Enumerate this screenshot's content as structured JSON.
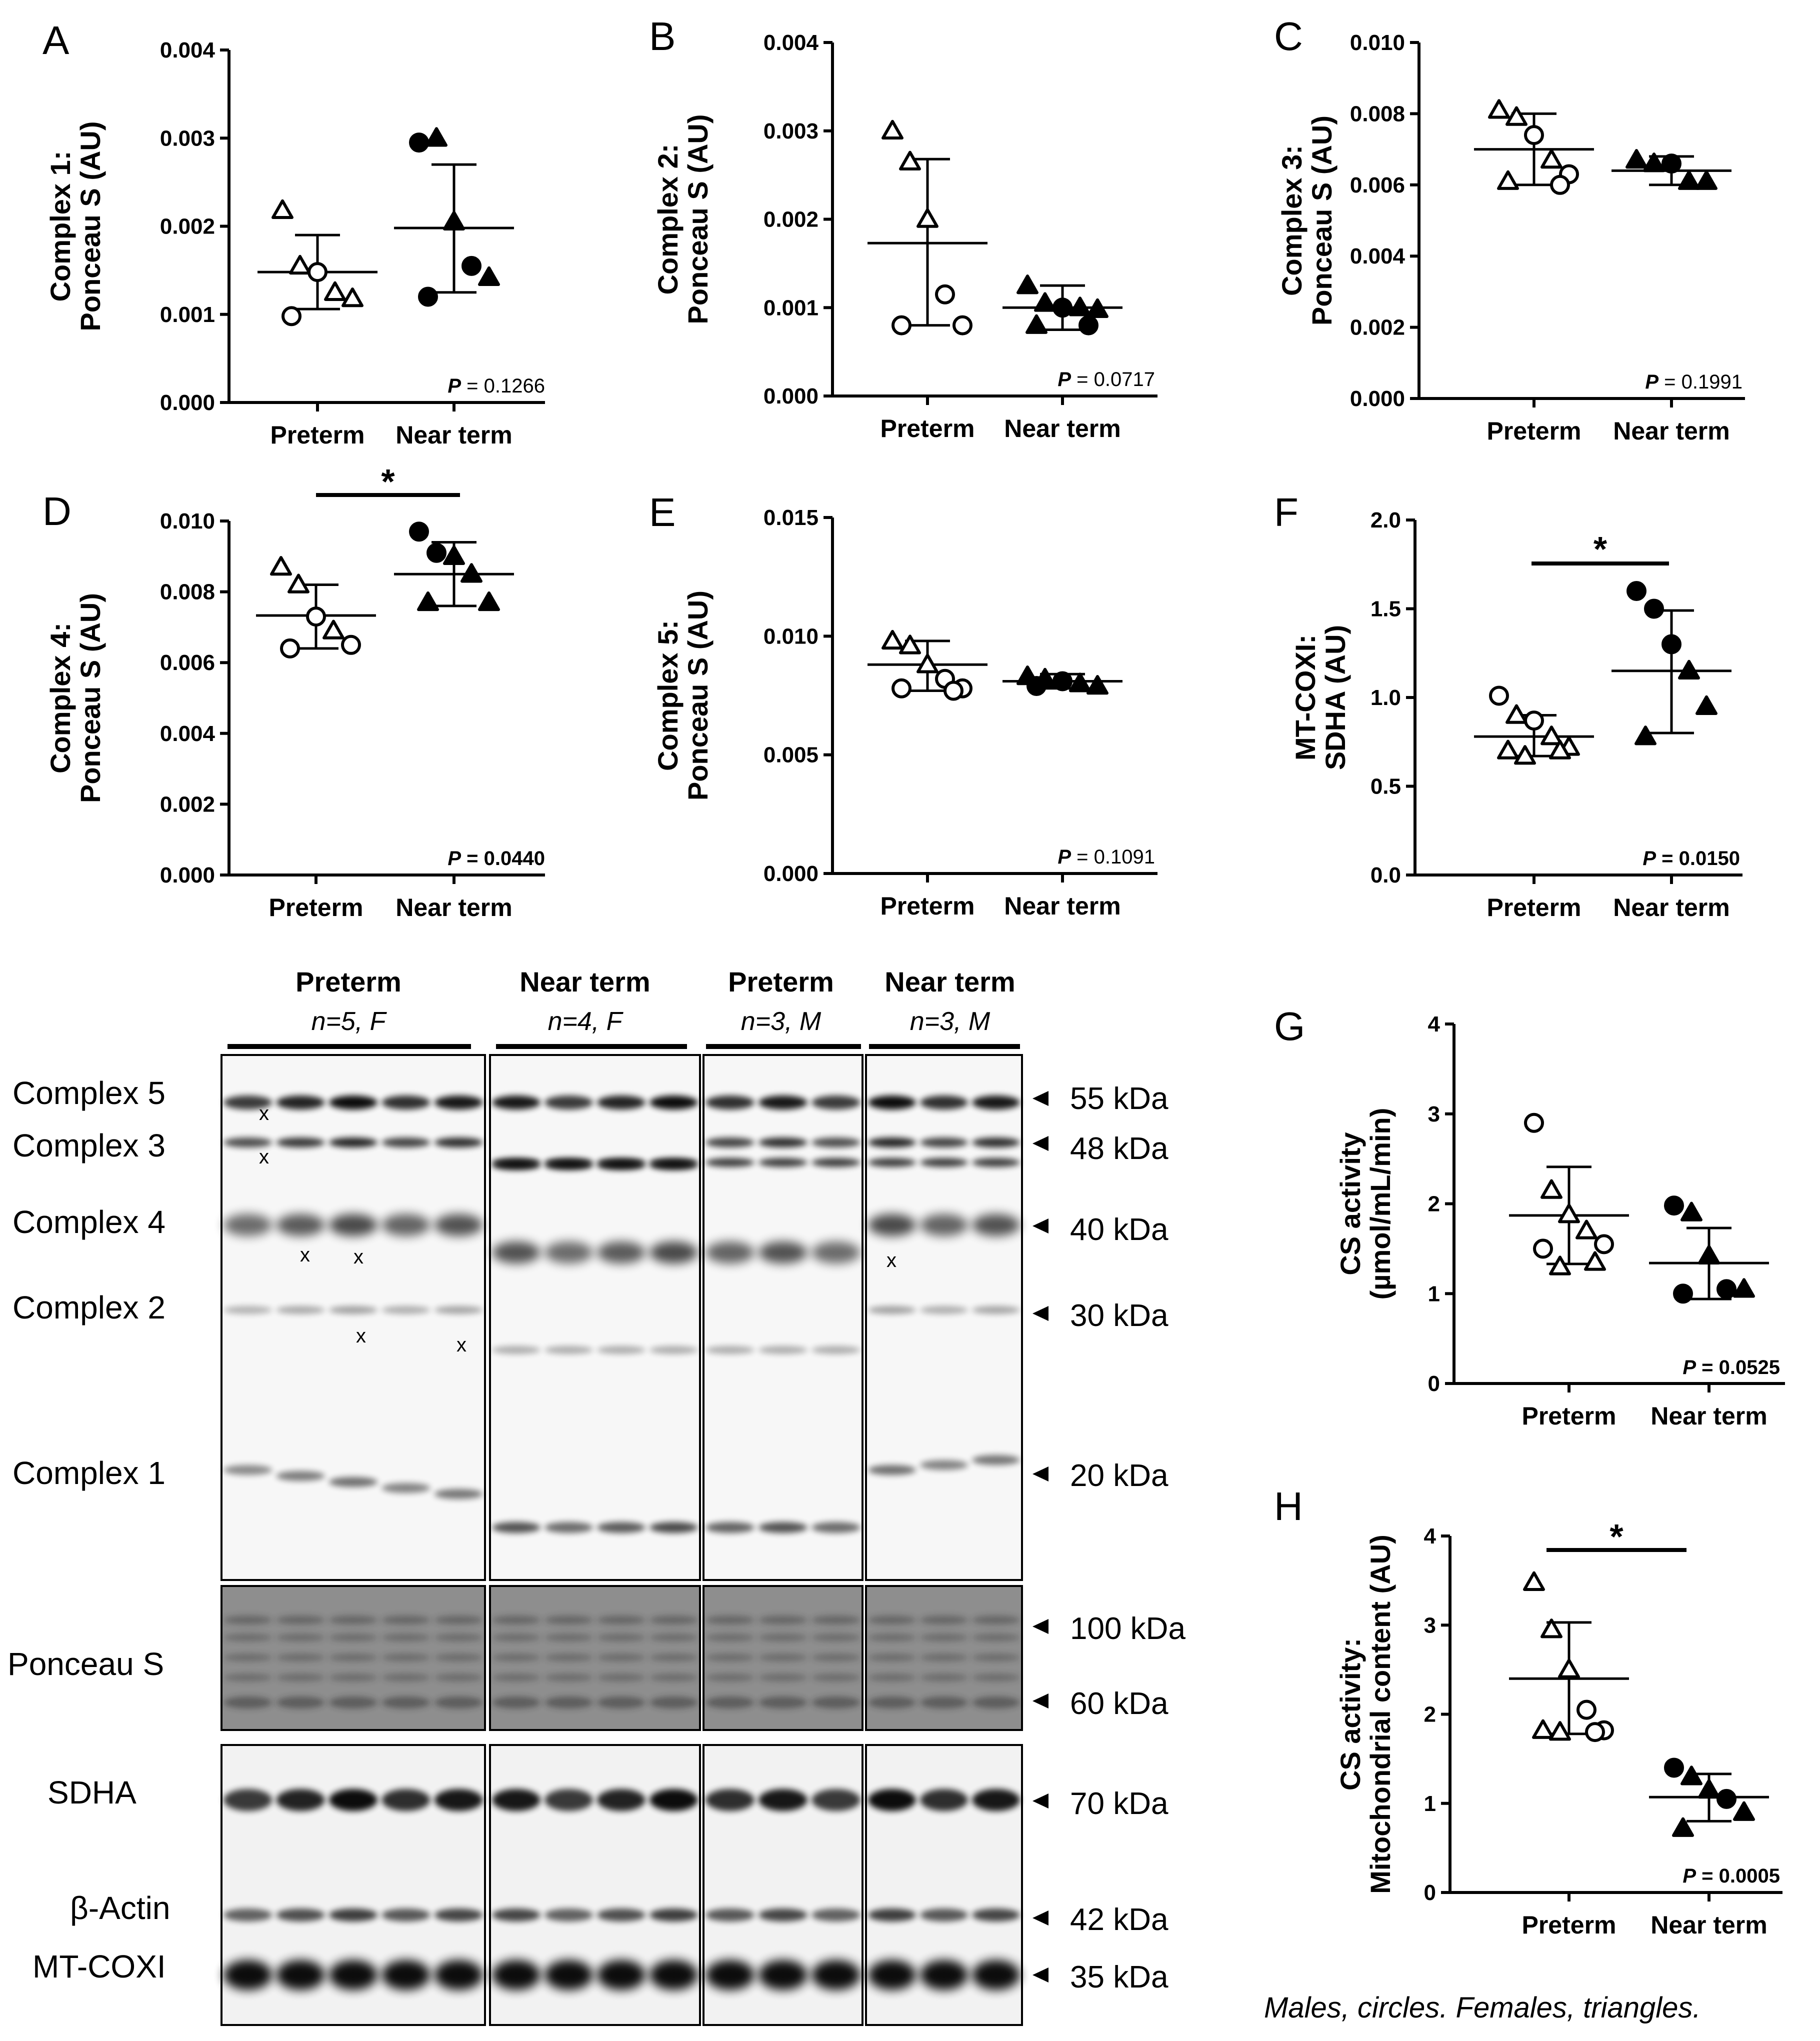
{
  "colors": {
    "ink": "#000000",
    "background": "#ffffff",
    "blot_bg": "#f4f4f4",
    "ponceau_bg": "#8c8c8c"
  },
  "marker_shapes": {
    "circle": "male",
    "triangle": "female"
  },
  "chart_data": [
    {
      "panel": "A",
      "type": "scatter",
      "ylabel_lines": [
        "Complex 1:",
        "Ponceau S (AU)"
      ],
      "ylim": [
        0,
        0.004
      ],
      "yticks": [
        "0.000",
        "0.001",
        "0.002",
        "0.003",
        "0.004"
      ],
      "categories": [
        "Preterm",
        "Near term"
      ],
      "p_label": "P",
      "p_text": " = 0.1266",
      "p_bold": false,
      "significant": false,
      "groups": [
        {
          "name": "Preterm",
          "mean": 0.00148,
          "sd_low": 0.00106,
          "sd_high": 0.0019,
          "points": [
            {
              "v": 0.00218,
              "shape": "triangle"
            },
            {
              "v": 0.00155,
              "shape": "triangle"
            },
            {
              "v": 0.00148,
              "shape": "circle"
            },
            {
              "v": 0.00125,
              "shape": "triangle"
            },
            {
              "v": 0.00118,
              "shape": "triangle"
            },
            {
              "v": 0.00098,
              "shape": "circle"
            }
          ]
        },
        {
          "name": "Near term",
          "mean": 0.00198,
          "sd_low": 0.00125,
          "sd_high": 0.0027,
          "points": [
            {
              "v": 0.00295,
              "shape": "circle"
            },
            {
              "v": 0.003,
              "shape": "triangle"
            },
            {
              "v": 0.00205,
              "shape": "triangle"
            },
            {
              "v": 0.00155,
              "shape": "circle"
            },
            {
              "v": 0.00142,
              "shape": "triangle"
            },
            {
              "v": 0.0012,
              "shape": "circle"
            }
          ]
        }
      ]
    },
    {
      "panel": "B",
      "type": "scatter",
      "ylabel_lines": [
        "Complex 2:",
        "Ponceau S (AU)"
      ],
      "ylim": [
        0,
        0.004
      ],
      "yticks": [
        "0.000",
        "0.001",
        "0.002",
        "0.003",
        "0.004"
      ],
      "categories": [
        "Preterm",
        "Near term"
      ],
      "p_label": "P",
      "p_text": " = 0.0717",
      "p_bold": false,
      "significant": false,
      "groups": [
        {
          "name": "Preterm",
          "mean": 0.00173,
          "sd_low": 0.0008,
          "sd_high": 0.00268,
          "points": [
            {
              "v": 0.003,
              "shape": "triangle"
            },
            {
              "v": 0.00265,
              "shape": "triangle"
            },
            {
              "v": 0.002,
              "shape": "triangle"
            },
            {
              "v": 0.00115,
              "shape": "circle"
            },
            {
              "v": 0.0008,
              "shape": "circle"
            },
            {
              "v": 0.0008,
              "shape": "circle"
            }
          ]
        },
        {
          "name": "Near term",
          "mean": 0.001,
          "sd_low": 0.00075,
          "sd_high": 0.00125,
          "points": [
            {
              "v": 0.00125,
              "shape": "triangle"
            },
            {
              "v": 0.00105,
              "shape": "triangle"
            },
            {
              "v": 0.001,
              "shape": "circle"
            },
            {
              "v": 0.001,
              "shape": "triangle"
            },
            {
              "v": 0.00098,
              "shape": "triangle"
            },
            {
              "v": 0.0008,
              "shape": "triangle"
            },
            {
              "v": 0.0008,
              "shape": "circle"
            }
          ]
        }
      ]
    },
    {
      "panel": "C",
      "type": "scatter",
      "ylabel_lines": [
        "Complex 3:",
        "Ponceau S (AU)"
      ],
      "ylim": [
        0,
        0.01
      ],
      "yticks": [
        "0.000",
        "0.002",
        "0.004",
        "0.006",
        "0.008",
        "0.010"
      ],
      "categories": [
        "Preterm",
        "Near term"
      ],
      "p_label": "P",
      "p_text": " = 0.1991",
      "p_bold": false,
      "significant": false,
      "groups": [
        {
          "name": "Preterm",
          "mean": 0.007,
          "sd_low": 0.006,
          "sd_high": 0.008,
          "points": [
            {
              "v": 0.0081,
              "shape": "triangle"
            },
            {
              "v": 0.0079,
              "shape": "triangle"
            },
            {
              "v": 0.0074,
              "shape": "circle"
            },
            {
              "v": 0.0067,
              "shape": "triangle"
            },
            {
              "v": 0.0063,
              "shape": "circle"
            },
            {
              "v": 0.0061,
              "shape": "triangle"
            },
            {
              "v": 0.006,
              "shape": "circle"
            }
          ]
        },
        {
          "name": "Near term",
          "mean": 0.0064,
          "sd_low": 0.006,
          "sd_high": 0.0068,
          "points": [
            {
              "v": 0.0067,
              "shape": "triangle"
            },
            {
              "v": 0.0066,
              "shape": "triangle"
            },
            {
              "v": 0.0066,
              "shape": "circle"
            },
            {
              "v": 0.0061,
              "shape": "triangle"
            },
            {
              "v": 0.0061,
              "shape": "triangle"
            }
          ]
        }
      ]
    },
    {
      "panel": "D",
      "type": "scatter",
      "ylabel_lines": [
        "Complex 4:",
        "Ponceau S (AU)"
      ],
      "ylim": [
        0,
        0.01
      ],
      "yticks": [
        "0.000",
        "0.002",
        "0.004",
        "0.006",
        "0.008",
        "0.010"
      ],
      "categories": [
        "Preterm",
        "Near term"
      ],
      "p_label": "P",
      "p_text": " = 0.0440",
      "p_bold": true,
      "significant": true,
      "sig_mark": "*",
      "groups": [
        {
          "name": "Preterm",
          "mean": 0.00733,
          "sd_low": 0.0064,
          "sd_high": 0.0082,
          "points": [
            {
              "v": 0.0087,
              "shape": "triangle"
            },
            {
              "v": 0.0082,
              "shape": "triangle"
            },
            {
              "v": 0.0073,
              "shape": "circle"
            },
            {
              "v": 0.0069,
              "shape": "triangle"
            },
            {
              "v": 0.0065,
              "shape": "circle"
            },
            {
              "v": 0.0064,
              "shape": "circle"
            }
          ]
        },
        {
          "name": "Near term",
          "mean": 0.0085,
          "sd_low": 0.0076,
          "sd_high": 0.0094,
          "points": [
            {
              "v": 0.0097,
              "shape": "circle"
            },
            {
              "v": 0.0091,
              "shape": "circle"
            },
            {
              "v": 0.009,
              "shape": "triangle"
            },
            {
              "v": 0.0085,
              "shape": "triangle"
            },
            {
              "v": 0.0077,
              "shape": "triangle"
            },
            {
              "v": 0.0077,
              "shape": "triangle"
            }
          ]
        }
      ]
    },
    {
      "panel": "E",
      "type": "scatter",
      "ylabel_lines": [
        "Complex 5:",
        "Ponceau S (AU)"
      ],
      "ylim": [
        0,
        0.015
      ],
      "yticks": [
        "0.000",
        "0.005",
        "0.010",
        "0.015"
      ],
      "categories": [
        "Preterm",
        "Near term"
      ],
      "p_label": "P",
      "p_text": " = 0.1091",
      "p_bold": false,
      "significant": false,
      "groups": [
        {
          "name": "Preterm",
          "mean": 0.0088,
          "sd_low": 0.0077,
          "sd_high": 0.0098,
          "points": [
            {
              "v": 0.0098,
              "shape": "triangle"
            },
            {
              "v": 0.0096,
              "shape": "triangle"
            },
            {
              "v": 0.0088,
              "shape": "triangle"
            },
            {
              "v": 0.0082,
              "shape": "circle"
            },
            {
              "v": 0.0078,
              "shape": "circle"
            },
            {
              "v": 0.0078,
              "shape": "circle"
            },
            {
              "v": 0.0077,
              "shape": "circle"
            }
          ]
        },
        {
          "name": "Near term",
          "mean": 0.0081,
          "sd_low": 0.0078,
          "sd_high": 0.0084,
          "points": [
            {
              "v": 0.0083,
              "shape": "triangle"
            },
            {
              "v": 0.0082,
              "shape": "triangle"
            },
            {
              "v": 0.0081,
              "shape": "circle"
            },
            {
              "v": 0.008,
              "shape": "triangle"
            },
            {
              "v": 0.0079,
              "shape": "triangle"
            },
            {
              "v": 0.0079,
              "shape": "circle"
            }
          ]
        }
      ]
    },
    {
      "panel": "F",
      "type": "scatter",
      "ylabel_lines": [
        "MT-COXI:",
        "SDHA (AU)"
      ],
      "ylim": [
        0,
        2
      ],
      "yticks": [
        "0.0",
        "0.5",
        "1.0",
        "1.5",
        "2.0"
      ],
      "categories": [
        "Preterm",
        "Near term"
      ],
      "p_label": "P",
      "p_text": " = 0.0150",
      "p_bold": true,
      "significant": true,
      "sig_mark": "*",
      "groups": [
        {
          "name": "Preterm",
          "mean": 0.78,
          "sd_low": 0.67,
          "sd_high": 0.9,
          "points": [
            {
              "v": 1.01,
              "shape": "circle"
            },
            {
              "v": 0.9,
              "shape": "triangle"
            },
            {
              "v": 0.87,
              "shape": "circle"
            },
            {
              "v": 0.78,
              "shape": "triangle"
            },
            {
              "v": 0.72,
              "shape": "triangle"
            },
            {
              "v": 0.7,
              "shape": "triangle"
            },
            {
              "v": 0.7,
              "shape": "triangle"
            },
            {
              "v": 0.67,
              "shape": "triangle"
            }
          ]
        },
        {
          "name": "Near term",
          "mean": 1.15,
          "sd_low": 0.8,
          "sd_high": 1.49,
          "points": [
            {
              "v": 1.6,
              "shape": "circle"
            },
            {
              "v": 1.5,
              "shape": "circle"
            },
            {
              "v": 1.3,
              "shape": "circle"
            },
            {
              "v": 1.15,
              "shape": "triangle"
            },
            {
              "v": 0.95,
              "shape": "triangle"
            },
            {
              "v": 0.78,
              "shape": "triangle"
            }
          ]
        }
      ]
    },
    {
      "panel": "G",
      "type": "scatter",
      "ylabel_lines": [
        "CS activity",
        "(µmol/mL/min)"
      ],
      "ylim": [
        0,
        4
      ],
      "yticks": [
        "0",
        "1",
        "2",
        "3",
        "4"
      ],
      "categories": [
        "Preterm",
        "Near term"
      ],
      "p_label": "P",
      "p_text": " = 0.0525",
      "p_bold": true,
      "significant": false,
      "groups": [
        {
          "name": "Preterm",
          "mean": 1.87,
          "sd_low": 1.33,
          "sd_high": 2.41,
          "points": [
            {
              "v": 2.9,
              "shape": "circle"
            },
            {
              "v": 2.15,
              "shape": "triangle"
            },
            {
              "v": 1.88,
              "shape": "triangle"
            },
            {
              "v": 1.7,
              "shape": "triangle"
            },
            {
              "v": 1.55,
              "shape": "circle"
            },
            {
              "v": 1.5,
              "shape": "circle"
            },
            {
              "v": 1.35,
              "shape": "triangle"
            },
            {
              "v": 1.3,
              "shape": "triangle"
            }
          ]
        },
        {
          "name": "Near term",
          "mean": 1.34,
          "sd_low": 0.94,
          "sd_high": 1.73,
          "points": [
            {
              "v": 1.98,
              "shape": "circle"
            },
            {
              "v": 1.9,
              "shape": "triangle"
            },
            {
              "v": 1.42,
              "shape": "triangle"
            },
            {
              "v": 1.05,
              "shape": "circle"
            },
            {
              "v": 1.05,
              "shape": "triangle"
            },
            {
              "v": 1.0,
              "shape": "circle"
            }
          ]
        }
      ]
    },
    {
      "panel": "H",
      "type": "scatter",
      "ylabel_lines": [
        "CS activity:",
        "Mitochondrial content (AU)"
      ],
      "ylim": [
        0,
        4
      ],
      "yticks": [
        "0",
        "1",
        "2",
        "3",
        "4"
      ],
      "categories": [
        "Preterm",
        "Near term"
      ],
      "p_label": "P",
      "p_text": " = 0.0005",
      "p_bold": true,
      "significant": true,
      "sig_mark": "*",
      "groups": [
        {
          "name": "Preterm",
          "mean": 2.4,
          "sd_low": 1.78,
          "sd_high": 3.03,
          "points": [
            {
              "v": 3.48,
              "shape": "triangle"
            },
            {
              "v": 2.95,
              "shape": "triangle"
            },
            {
              "v": 2.5,
              "shape": "triangle"
            },
            {
              "v": 2.05,
              "shape": "circle"
            },
            {
              "v": 1.82,
              "shape": "circle"
            },
            {
              "v": 1.82,
              "shape": "triangle"
            },
            {
              "v": 1.8,
              "shape": "circle"
            },
            {
              "v": 1.8,
              "shape": "triangle"
            }
          ]
        },
        {
          "name": "Near term",
          "mean": 1.07,
          "sd_low": 0.8,
          "sd_high": 1.33,
          "points": [
            {
              "v": 1.4,
              "shape": "circle"
            },
            {
              "v": 1.3,
              "shape": "triangle"
            },
            {
              "v": 1.15,
              "shape": "triangle"
            },
            {
              "v": 1.05,
              "shape": "circle"
            },
            {
              "v": 0.9,
              "shape": "triangle"
            },
            {
              "v": 0.72,
              "shape": "triangle"
            }
          ]
        }
      ]
    }
  ],
  "blot": {
    "groups": [
      {
        "name": "Preterm",
        "n": "n=5, F",
        "lanes": 5
      },
      {
        "name": "Near term",
        "n": "n=4, F",
        "lanes": 4
      },
      {
        "name": "Preterm",
        "n": "n=3, M",
        "lanes": 3
      },
      {
        "name": "Near term",
        "n": "n=3, M",
        "lanes": 3
      }
    ],
    "row_labels": {
      "complex5": "Complex 5",
      "complex3": "Complex 3",
      "complex4": "Complex 4",
      "complex2": "Complex 2",
      "complex1": "Complex 1",
      "ponceau": "Ponceau S",
      "sdha": "SDHA",
      "actin": "β-Actin",
      "mtcoxi": "MT-COXI"
    },
    "kda": {
      "k55": "55 kDa",
      "k48": "48 kDa",
      "k40": "40 kDa",
      "k30": "30 kDa",
      "k20": "20 kDa",
      "k100": "100 kDa",
      "k60": "60 kDa",
      "k70": "70 kDa",
      "k42": "42 kDa",
      "k35": "35 kDa"
    },
    "excluded_mark": "x"
  },
  "legend": "Males, circles. Females, triangles."
}
